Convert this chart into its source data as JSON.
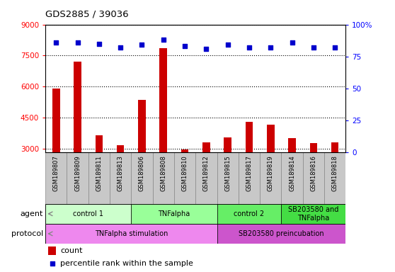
{
  "title": "GDS2885 / 39036",
  "samples": [
    "GSM189807",
    "GSM189809",
    "GSM189811",
    "GSM189813",
    "GSM189806",
    "GSM189808",
    "GSM189810",
    "GSM189812",
    "GSM189815",
    "GSM189817",
    "GSM189819",
    "GSM189814",
    "GSM189816",
    "GSM189818"
  ],
  "counts": [
    5900,
    7200,
    3650,
    3150,
    5350,
    7850,
    2950,
    3300,
    3550,
    4300,
    4150,
    3500,
    3250,
    3280
  ],
  "percentile": [
    86,
    86,
    85,
    82,
    84,
    88,
    83,
    81,
    84,
    82,
    82,
    86,
    82,
    82
  ],
  "ylim_left": [
    2800,
    9000
  ],
  "ylim_right": [
    0,
    100
  ],
  "yticks_left": [
    3000,
    4500,
    6000,
    7500,
    9000
  ],
  "yticks_right": [
    0,
    25,
    50,
    75,
    100
  ],
  "bar_color": "#cc0000",
  "dot_color": "#0000cc",
  "agent_groups": [
    {
      "label": "control 1",
      "start": 0,
      "end": 4,
      "color": "#ccffcc"
    },
    {
      "label": "TNFalpha",
      "start": 4,
      "end": 8,
      "color": "#99ff99"
    },
    {
      "label": "control 2",
      "start": 8,
      "end": 11,
      "color": "#66ee66"
    },
    {
      "label": "SB203580 and\nTNFalpha",
      "start": 11,
      "end": 14,
      "color": "#44dd44"
    }
  ],
  "protocol_groups": [
    {
      "label": "TNFalpha stimulation",
      "start": 0,
      "end": 8,
      "color": "#ee88ee"
    },
    {
      "label": "SB203580 preincubation",
      "start": 8,
      "end": 14,
      "color": "#cc55cc"
    }
  ],
  "legend_count_label": "count",
  "legend_pct_label": "percentile rank within the sample",
  "agent_label": "agent",
  "protocol_label": "protocol",
  "sample_box_color": "#c8c8c8",
  "sample_box_edge": "#888888"
}
